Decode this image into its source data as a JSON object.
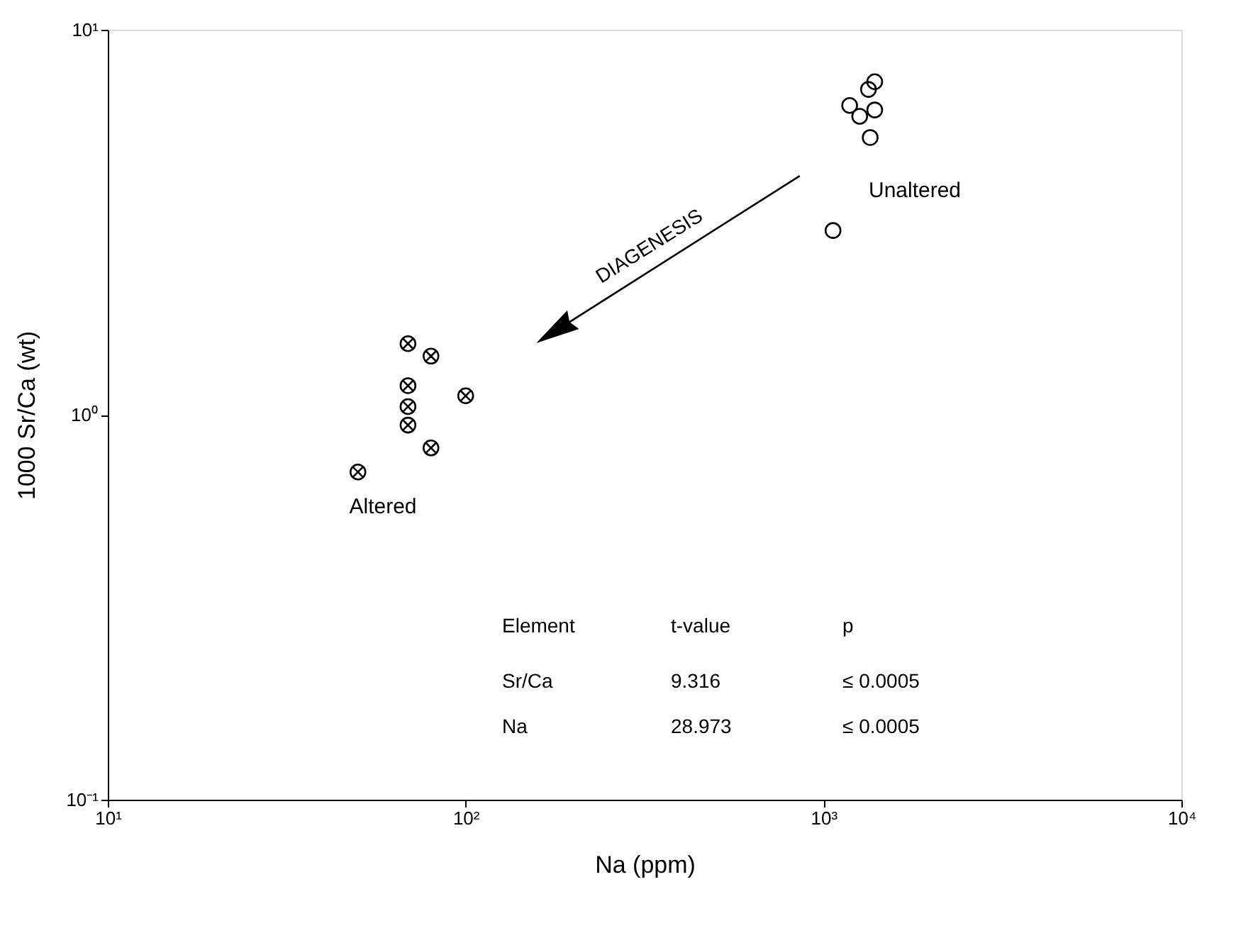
{
  "chart_data": {
    "type": "scatter",
    "xlabel": "Na (ppm)",
    "ylabel": "1000 Sr/Ca (wt)",
    "log": "xy",
    "grid": false,
    "xlim": [
      10,
      10000
    ],
    "xticks": [
      {
        "value": 10,
        "label": "10¹"
      },
      {
        "value": 100,
        "label": "10²"
      },
      {
        "value": 1000,
        "label": "10³"
      },
      {
        "value": 10000,
        "label": "10⁴"
      }
    ],
    "ylim": [
      0.1,
      10
    ],
    "yticks": [
      {
        "value": 0.1,
        "label": "10⁻¹"
      },
      {
        "value": 1,
        "label": "10⁰"
      },
      {
        "value": 10,
        "label": "10¹"
      }
    ],
    "series": [
      {
        "name": "Altered",
        "color": "#000000",
        "marker": "cross",
        "x": [
          69,
          80,
          69,
          69,
          69,
          80,
          100,
          50
        ],
        "values": [
          1.53,
          1.42,
          1.19,
          1.05,
          0.94,
          0.82,
          1.12,
          0.71
        ]
      },
      {
        "name": "Unaltered",
        "color": "#000000",
        "marker": "circle",
        "x": [
          1390,
          1335,
          1183,
          1262,
          1390,
          1350,
          1063
        ],
        "values": [
          7.33,
          7.0,
          6.36,
          5.96,
          6.19,
          5.25,
          3.01
        ]
      }
    ],
    "annotations": [
      "DIAGENESIS",
      "Element",
      "t-value",
      "p",
      "Sr/Ca",
      "9.316",
      "≤ 0.0005",
      "Na",
      "28.973",
      "≤ 0.0005"
    ]
  }
}
